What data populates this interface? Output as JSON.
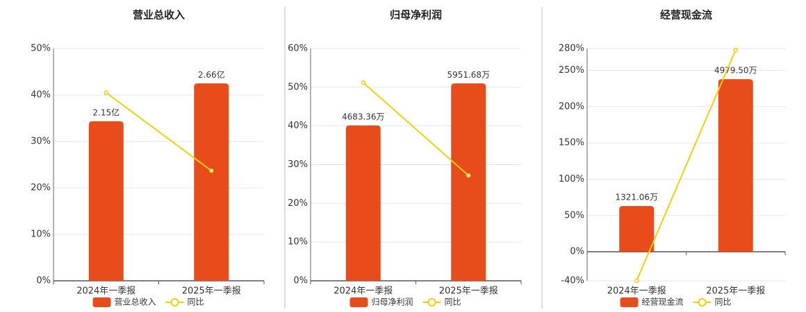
{
  "chart_data": [
    {
      "type": "bar",
      "title": "营业总收入",
      "categories": [
        "2024年一季报",
        "2025年一季报"
      ],
      "ylim": [
        0,
        50
      ],
      "yticks": [
        {
          "value": 0,
          "label": "0%"
        },
        {
          "value": 10,
          "label": "10%"
        },
        {
          "value": 20,
          "label": "20%"
        },
        {
          "value": 30,
          "label": "30%"
        },
        {
          "value": 40,
          "label": "40%"
        },
        {
          "value": 50,
          "label": "50%"
        }
      ],
      "y2lim": [
        0,
        3.13
      ],
      "grid": true,
      "series": [
        {
          "name": "营业总收入",
          "color": "#e84c1a",
          "axis": "y2",
          "values": [
            2.15,
            2.66
          ],
          "value_labels": [
            "2.15亿",
            "2.66亿"
          ]
        },
        {
          "name": "同比",
          "color": "#f2cf0a",
          "type": "line",
          "values": [
            40.5,
            23.7
          ]
        }
      ]
    },
    {
      "type": "bar",
      "title": "归母净利润",
      "categories": [
        "2024年一季报",
        "2025年一季报"
      ],
      "ylim": [
        0,
        60
      ],
      "yticks": [
        {
          "value": 0,
          "label": "0%"
        },
        {
          "value": 10,
          "label": "10%"
        },
        {
          "value": 20,
          "label": "20%"
        },
        {
          "value": 30,
          "label": "30%"
        },
        {
          "value": 40,
          "label": "40%"
        },
        {
          "value": 50,
          "label": "50%"
        },
        {
          "value": 60,
          "label": "60%"
        }
      ],
      "y2lim": [
        0,
        7002
      ],
      "grid": true,
      "series": [
        {
          "name": "归母净利润",
          "color": "#e84c1a",
          "axis": "y2",
          "values": [
            4683.36,
            5951.68
          ],
          "value_labels": [
            "4683.36万",
            "5951.68万"
          ]
        },
        {
          "name": "同比",
          "color": "#f2cf0a",
          "type": "line",
          "values": [
            51.2,
            27.2
          ]
        }
      ]
    },
    {
      "type": "bar",
      "title": "经营现金流",
      "categories": [
        "2024年一季报",
        "2025年一季报"
      ],
      "ylim": [
        -40,
        280
      ],
      "yticks": [
        {
          "value": -40,
          "label": "-40%"
        },
        {
          "value": 0,
          "label": "0%"
        },
        {
          "value": 50,
          "label": "50%"
        },
        {
          "value": 100,
          "label": "100%"
        },
        {
          "value": 150,
          "label": "150%"
        },
        {
          "value": 200,
          "label": "200%"
        },
        {
          "value": 250,
          "label": "250%"
        },
        {
          "value": 280,
          "label": "280%"
        }
      ],
      "y2lim": [
        -837.6,
        5863
      ],
      "grid": true,
      "series": [
        {
          "name": "经营现金流",
          "color": "#e84c1a",
          "axis": "y2",
          "values": [
            1321.06,
            4979.5
          ],
          "value_labels": [
            "1321.06万",
            "4979.50万"
          ]
        },
        {
          "name": "同比",
          "color": "#f2cf0a",
          "type": "line",
          "values": [
            -40,
            278
          ]
        }
      ]
    }
  ]
}
